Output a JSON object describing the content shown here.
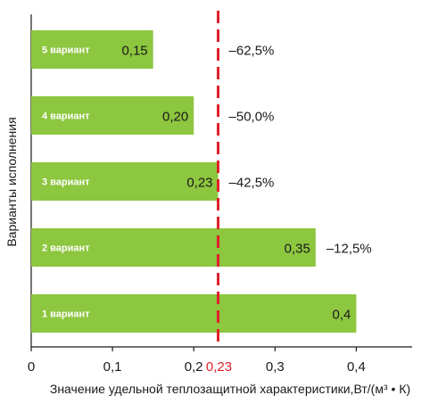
{
  "chart_data": {
    "type": "bar",
    "orientation": "horizontal",
    "categories": [
      "5 вариант",
      "4 вариант",
      "3 вариант",
      "2 вариант",
      "1 вариант"
    ],
    "values": [
      0.15,
      0.2,
      0.23,
      0.35,
      0.4
    ],
    "value_labels": [
      "0,15",
      "0,20",
      "0,23",
      "0,35",
      "0,4"
    ],
    "delta_labels": [
      "–62,5%",
      "–50,0%",
      "–42,5%",
      "–12,5%",
      ""
    ],
    "xlim": [
      0,
      0.45
    ],
    "xticks": [
      0,
      0.1,
      0.2,
      0.3,
      0.4
    ],
    "xtick_labels": [
      "0",
      "0,1",
      "0,2",
      "0,3",
      "0,4"
    ],
    "reference_line": {
      "value": 0.23,
      "label": "0,23",
      "color": "#e0202a",
      "style": "dashed"
    },
    "xlabel": "Значение удельной теплозащитной характеристики,Вт/(м³ • К)",
    "ylabel": "Варианты исполнения",
    "bar_color": "#8dc63f",
    "grid": false
  }
}
